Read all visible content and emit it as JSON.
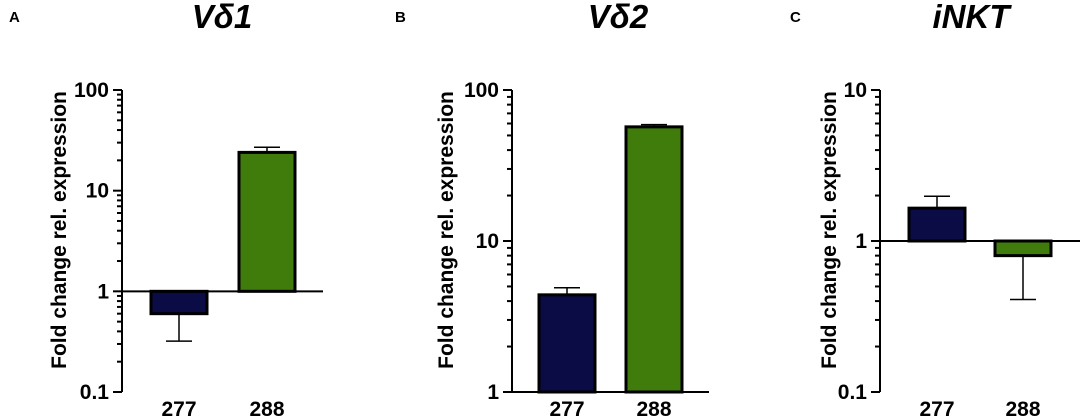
{
  "chart_data": [
    {
      "panel": "A",
      "type": "bar",
      "title": "Vδ1",
      "ylabel": "Fold change rel. expression",
      "yscale": "log",
      "ylim": [
        0.1,
        100
      ],
      "yticks": [
        "0.1",
        "1",
        "10",
        "100"
      ],
      "baseline": 1,
      "categories": [
        "277",
        "288"
      ],
      "values": [
        0.6,
        24
      ],
      "error_ends": [
        0.32,
        27
      ],
      "colors": [
        "#0b0b45",
        "#3f7c0b"
      ]
    },
    {
      "panel": "B",
      "type": "bar",
      "title": "Vδ2",
      "ylabel": "Fold change rel. expression",
      "yscale": "log",
      "ylim": [
        1,
        100
      ],
      "yticks": [
        "1",
        "10",
        "100"
      ],
      "baseline": 1,
      "categories": [
        "277",
        "288"
      ],
      "values": [
        4.4,
        57
      ],
      "error_ends": [
        4.9,
        59
      ],
      "colors": [
        "#0b0b45",
        "#3f7c0b"
      ]
    },
    {
      "panel": "C",
      "type": "bar",
      "title": "iNKT",
      "ylabel": "Fold change rel. expression",
      "yscale": "log",
      "ylim": [
        0.1,
        10
      ],
      "yticks": [
        "0.1",
        "1",
        "10"
      ],
      "baseline": 1,
      "categories": [
        "277",
        "288"
      ],
      "values": [
        1.65,
        0.8
      ],
      "error_ends": [
        1.98,
        0.41
      ],
      "colors": [
        "#0b0b45",
        "#3f7c0b"
      ]
    }
  ]
}
